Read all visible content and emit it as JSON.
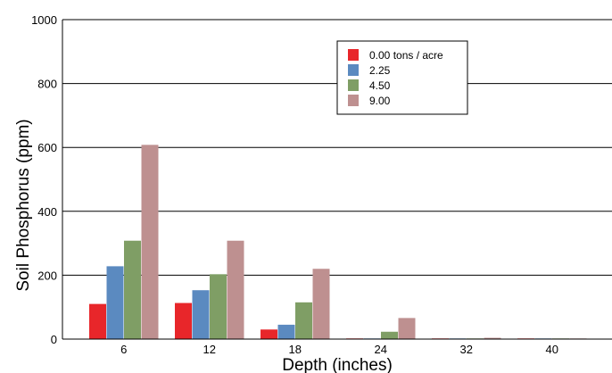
{
  "chart_data": {
    "type": "bar",
    "xlabel": "Depth (inches)",
    "ylabel": "Soil Phosphorus (ppm)",
    "categories": [
      "6",
      "12",
      "18",
      "24",
      "32",
      "40"
    ],
    "ylim": [
      0,
      1000
    ],
    "yticks": [
      "0",
      "200",
      "400",
      "600",
      "800",
      "1000"
    ],
    "grid": true,
    "legend_position": "top-right",
    "series": [
      {
        "name": "0.00 tons / acre",
        "color": "#e8262a",
        "values": [
          110,
          113,
          30,
          2,
          2,
          2
        ]
      },
      {
        "name": "2.25",
        "color": "#5b8ac0",
        "values": [
          228,
          153,
          45,
          2,
          2,
          2
        ]
      },
      {
        "name": "4.50",
        "color": "#7f9e65",
        "values": [
          308,
          203,
          115,
          23,
          2,
          2
        ]
      },
      {
        "name": "9.00",
        "color": "#be9090",
        "values": [
          608,
          308,
          220,
          66,
          4,
          2
        ]
      }
    ]
  }
}
